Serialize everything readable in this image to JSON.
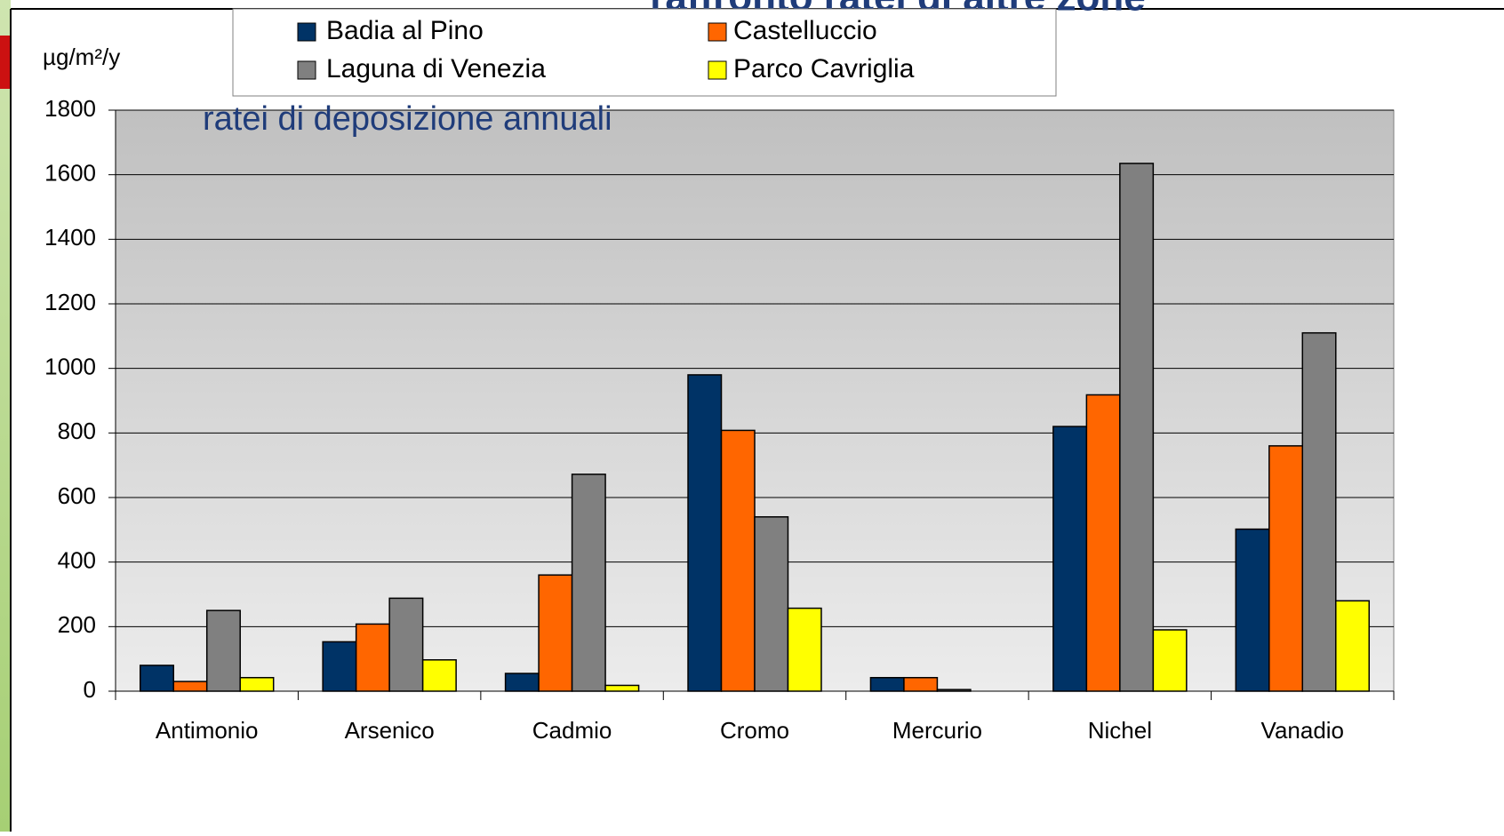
{
  "chart_data": {
    "type": "bar",
    "title": "raffronto ratei di altre zone",
    "subtitle": "ratei di deposizione annuali",
    "y_label": "µg/m²/y",
    "categories": [
      "Antimonio",
      "Arsenico",
      "Cadmio",
      "Cromo",
      "Mercurio",
      "Nichel",
      "Vanadio"
    ],
    "series": [
      {
        "name": "Badia al Pino",
        "color": "#003366",
        "values": [
          80,
          153,
          55,
          980,
          42,
          820,
          502
        ]
      },
      {
        "name": "Castelluccio",
        "color": "#ff6600",
        "values": [
          30,
          208,
          360,
          808,
          42,
          918,
          760
        ]
      },
      {
        "name": "Laguna di Venezia",
        "color": "#808080",
        "values": [
          250,
          288,
          672,
          540,
          5,
          1635,
          1110
        ]
      },
      {
        "name": "Parco Cavriglia",
        "color": "#ffff00",
        "values": [
          42,
          97,
          18,
          257,
          null,
          190,
          280
        ]
      }
    ],
    "ylim": [
      0,
      1800
    ],
    "yticks": [
      0,
      200,
      400,
      600,
      800,
      1000,
      1200,
      1400,
      1600,
      1800
    ],
    "grid": true
  }
}
